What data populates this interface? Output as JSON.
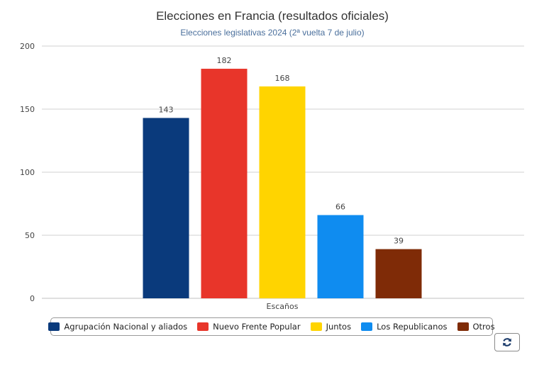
{
  "chart_data": {
    "type": "bar",
    "title": "Elecciones en Francia (resultados oficiales)",
    "subtitle": "Elecciones legislativas 2024 (2ª vuelta 7 de julio)",
    "categories": [
      "Escaños"
    ],
    "xlabel": "",
    "ylabel": "",
    "ylim": [
      0,
      200
    ],
    "yticks": [
      0,
      50,
      100,
      150,
      200
    ],
    "grid": true,
    "legend_position": "bottom",
    "series": [
      {
        "name": "Agrupación Nacional y aliados",
        "values": [
          143
        ],
        "color": "#0a3a7c"
      },
      {
        "name": "Nuevo Frente Popular",
        "values": [
          182
        ],
        "color": "#e8352a"
      },
      {
        "name": "Juntos",
        "values": [
          168
        ],
        "color": "#ffd400"
      },
      {
        "name": "Los Republicanos",
        "values": [
          66
        ],
        "color": "#0f8cf0"
      },
      {
        "name": "Otros",
        "values": [
          39
        ],
        "color": "#7f2b07"
      }
    ]
  },
  "toolbar": {
    "refresh_icon": "refresh-icon"
  }
}
